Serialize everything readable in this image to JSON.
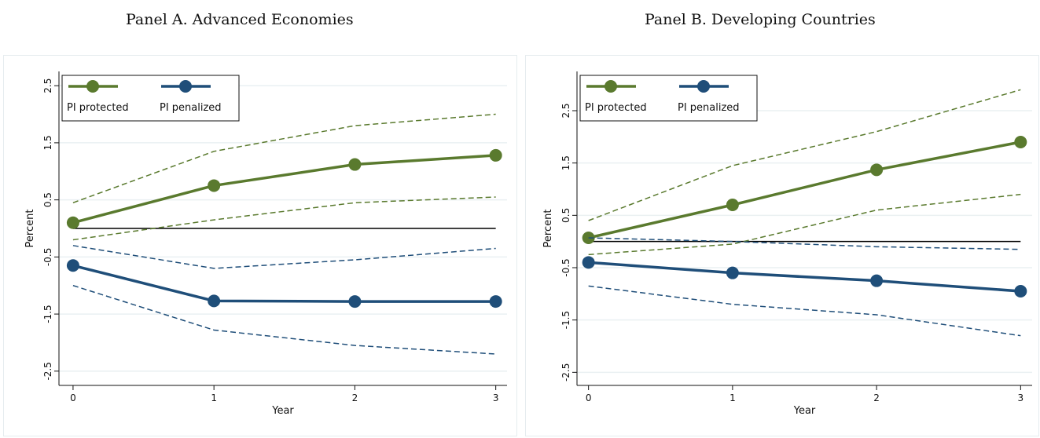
{
  "panels": {
    "a": {
      "title": "Panel A. Advanced Economies"
    },
    "b": {
      "title": "Panel B. Developing Countries"
    }
  },
  "colors": {
    "protected": "#5a7a2e",
    "penalized": "#1f4e79",
    "zero_line": "#000000",
    "grid": "#eaf0f2"
  },
  "chart_data": [
    {
      "type": "line",
      "title": "Panel A. Advanced Economies",
      "xlabel": "Year",
      "ylabel": "Percent",
      "x": [
        0,
        1,
        2,
        3
      ],
      "xticks": [
        "0",
        "1",
        "2",
        "3"
      ],
      "yticks": [
        "2.5",
        "1.5",
        "0.5",
        "-0.5",
        "-1.5",
        "-2.5"
      ],
      "ylim": [
        -2.75,
        2.75
      ],
      "grid": true,
      "legend_position": "top-left",
      "reference_line": 0,
      "series": [
        {
          "name": "PI protected",
          "values": [
            0.1,
            0.75,
            1.12,
            1.28
          ],
          "lower": [
            -0.2,
            0.15,
            0.45,
            0.55
          ],
          "upper": [
            0.45,
            1.35,
            1.8,
            2.0
          ]
        },
        {
          "name": "PI penalized",
          "values": [
            -0.65,
            -1.27,
            -1.28,
            -1.28
          ],
          "lower": [
            -1.0,
            -1.78,
            -2.05,
            -2.2
          ],
          "upper": [
            -0.3,
            -0.7,
            -0.55,
            -0.35
          ]
        }
      ]
    },
    {
      "type": "line",
      "title": "Panel B. Developing Countries",
      "xlabel": "Year",
      "ylabel": "Percent",
      "x": [
        0,
        1,
        2,
        3
      ],
      "xticks": [
        "0",
        "1",
        "2",
        "3"
      ],
      "yticks": [
        "2.5",
        "1.5",
        "0.5",
        "-0.5",
        "-1.5",
        "-2.5"
      ],
      "ylim": [
        -2.75,
        3.25
      ],
      "grid": true,
      "legend_position": "top-left",
      "reference_line": 0,
      "series": [
        {
          "name": "PI protected",
          "values": [
            0.07,
            0.7,
            1.37,
            1.9
          ],
          "lower": [
            -0.25,
            -0.05,
            0.6,
            0.9
          ],
          "upper": [
            0.4,
            1.45,
            2.1,
            2.9
          ]
        },
        {
          "name": "PI penalized",
          "values": [
            -0.4,
            -0.6,
            -0.75,
            -0.95
          ],
          "lower": [
            -0.85,
            -1.2,
            -1.4,
            -1.8
          ],
          "upper": [
            0.07,
            0.0,
            -0.1,
            -0.15
          ]
        }
      ]
    }
  ]
}
